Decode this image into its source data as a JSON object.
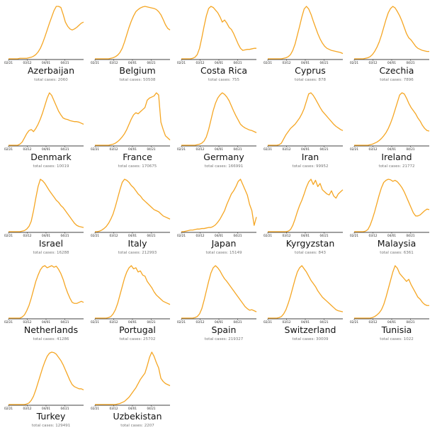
{
  "colors": {
    "line": "#f5a623",
    "axis": "#000000",
    "label": "#111111",
    "subtitle": "#777777"
  },
  "tick_labels": [
    "02/21",
    "03/12",
    "04/01",
    "04/21"
  ],
  "total_prefix": "total cases: ",
  "chart_data": [
    {
      "type": "line",
      "country": "Azerbaijan",
      "total": "2060",
      "y": [
        0,
        0,
        0,
        0,
        0,
        1,
        1,
        1,
        1,
        2,
        3,
        5,
        8,
        13,
        20,
        30,
        42,
        55,
        68,
        80,
        92,
        100,
        100,
        98,
        85,
        70,
        62,
        57,
        55,
        57,
        60,
        64,
        68,
        70
      ]
    },
    {
      "type": "line",
      "country": "Belgium",
      "total": "50508",
      "y": [
        0,
        0,
        0,
        0,
        0,
        0,
        0,
        1,
        2,
        4,
        7,
        12,
        20,
        32,
        46,
        60,
        72,
        82,
        90,
        94,
        97,
        99,
        100,
        99,
        98,
        97,
        96,
        94,
        90,
        84,
        75,
        65,
        58,
        55
      ]
    },
    {
      "type": "line",
      "country": "Costa Rica",
      "total": "755",
      "y": [
        0,
        0,
        0,
        0,
        0,
        1,
        3,
        8,
        20,
        40,
        62,
        82,
        96,
        100,
        98,
        93,
        88,
        80,
        70,
        74,
        68,
        60,
        56,
        48,
        38,
        28,
        20,
        16,
        17,
        18,
        18,
        19,
        20,
        20
      ]
    },
    {
      "type": "line",
      "country": "Cyprus",
      "total": "878",
      "y": [
        0,
        0,
        0,
        0,
        0,
        0,
        0,
        1,
        2,
        4,
        8,
        16,
        28,
        45,
        62,
        80,
        95,
        100,
        95,
        85,
        72,
        60,
        48,
        38,
        30,
        24,
        20,
        18,
        16,
        15,
        14,
        13,
        12,
        10
      ]
    },
    {
      "type": "line",
      "country": "Czechia",
      "total": "7896",
      "y": [
        0,
        0,
        0,
        0,
        0,
        1,
        2,
        4,
        8,
        14,
        22,
        32,
        45,
        60,
        75,
        88,
        96,
        100,
        97,
        90,
        82,
        72,
        60,
        48,
        40,
        36,
        30,
        24,
        20,
        18,
        16,
        15,
        14,
        14
      ]
    },
    {
      "type": "line",
      "country": "Denmark",
      "total": "10019",
      "y": [
        0,
        0,
        0,
        0,
        0,
        2,
        6,
        14,
        22,
        28,
        30,
        26,
        32,
        40,
        50,
        62,
        76,
        90,
        100,
        95,
        85,
        75,
        65,
        58,
        52,
        50,
        49,
        47,
        46,
        45,
        45,
        44,
        42,
        40
      ]
    },
    {
      "type": "line",
      "country": "France",
      "total": "170675",
      "y": [
        0,
        0,
        0,
        0,
        0,
        0,
        0,
        1,
        2,
        4,
        7,
        11,
        16,
        22,
        30,
        40,
        50,
        58,
        62,
        60,
        64,
        68,
        72,
        86,
        90,
        92,
        94,
        100,
        96,
        44,
        30,
        18,
        14,
        10
      ]
    },
    {
      "type": "line",
      "country": "Germany",
      "total": "166991",
      "y": [
        0,
        0,
        0,
        0,
        0,
        0,
        0,
        1,
        2,
        4,
        8,
        16,
        30,
        48,
        66,
        80,
        90,
        96,
        100,
        97,
        92,
        85,
        75,
        65,
        56,
        48,
        40,
        36,
        33,
        31,
        29,
        28,
        26,
        24
      ]
    },
    {
      "type": "line",
      "country": "Iran",
      "total": "99952",
      "y": [
        0,
        0,
        0,
        0,
        0,
        1,
        4,
        12,
        20,
        26,
        32,
        36,
        40,
        46,
        52,
        60,
        70,
        84,
        98,
        100,
        95,
        88,
        80,
        72,
        65,
        60,
        55,
        50,
        45,
        40,
        36,
        33,
        30,
        28
      ]
    },
    {
      "type": "line",
      "country": "Ireland",
      "total": "21772",
      "y": [
        0,
        0,
        0,
        0,
        0,
        0,
        0,
        1,
        2,
        4,
        6,
        9,
        13,
        18,
        24,
        32,
        42,
        54,
        68,
        82,
        96,
        100,
        98,
        90,
        80,
        72,
        66,
        60,
        52,
        46,
        38,
        32,
        28,
        27
      ]
    },
    {
      "type": "line",
      "country": "Israel",
      "total": "16288",
      "y": [
        0,
        0,
        0,
        0,
        0,
        0,
        1,
        2,
        5,
        10,
        20,
        40,
        64,
        86,
        100,
        97,
        92,
        85,
        78,
        72,
        66,
        60,
        56,
        50,
        46,
        40,
        34,
        28,
        22,
        16,
        12,
        10,
        9,
        8
      ]
    },
    {
      "type": "line",
      "country": "Italy",
      "total": "212993",
      "y": [
        0,
        0,
        1,
        3,
        6,
        10,
        16,
        24,
        34,
        48,
        64,
        80,
        94,
        100,
        98,
        94,
        88,
        84,
        78,
        72,
        68,
        62,
        58,
        54,
        50,
        46,
        42,
        40,
        38,
        34,
        30,
        28,
        26,
        24
      ]
    },
    {
      "type": "line",
      "country": "Japan",
      "total": "15149",
      "y": [
        0,
        0,
        1,
        2,
        3,
        3,
        4,
        5,
        5,
        6,
        6,
        7,
        8,
        8,
        10,
        13,
        18,
        24,
        32,
        40,
        52,
        62,
        72,
        78,
        86,
        96,
        100,
        90,
        80,
        70,
        52,
        40,
        12,
        28
      ]
    },
    {
      "type": "line",
      "country": "Kyrgyzstan",
      "total": "843",
      "y": [
        0,
        0,
        0,
        0,
        0,
        0,
        0,
        0,
        0,
        1,
        4,
        12,
        24,
        38,
        50,
        60,
        72,
        85,
        95,
        100,
        90,
        98,
        86,
        92,
        80,
        76,
        72,
        70,
        78,
        68,
        64,
        72,
        76,
        80
      ]
    },
    {
      "type": "line",
      "country": "Malaysia",
      "total": "6361",
      "y": [
        0,
        0,
        0,
        0,
        0,
        1,
        4,
        12,
        24,
        38,
        54,
        70,
        84,
        94,
        98,
        100,
        99,
        96,
        98,
        95,
        90,
        84,
        76,
        66,
        56,
        46,
        36,
        30,
        30,
        32,
        36,
        40,
        43,
        42
      ]
    },
    {
      "type": "line",
      "country": "Netherlands",
      "total": "41286",
      "y": [
        0,
        0,
        0,
        0,
        0,
        0,
        2,
        6,
        14,
        24,
        38,
        54,
        70,
        82,
        92,
        98,
        100,
        96,
        98,
        100,
        97,
        99,
        93,
        85,
        74,
        60,
        48,
        38,
        30,
        28,
        28,
        30,
        32,
        30
      ]
    },
    {
      "type": "line",
      "country": "Portugal",
      "total": "25702",
      "y": [
        0,
        0,
        0,
        0,
        0,
        0,
        1,
        3,
        8,
        16,
        28,
        44,
        60,
        76,
        88,
        96,
        100,
        94,
        96,
        88,
        90,
        82,
        80,
        70,
        64,
        58,
        50,
        44,
        40,
        36,
        32,
        30,
        28,
        26
      ]
    },
    {
      "type": "line",
      "country": "Spain",
      "total": "219327",
      "y": [
        0,
        0,
        0,
        0,
        0,
        0,
        1,
        3,
        8,
        18,
        34,
        52,
        70,
        86,
        96,
        100,
        96,
        90,
        82,
        75,
        70,
        64,
        58,
        52,
        46,
        40,
        34,
        28,
        22,
        18,
        15,
        16,
        14,
        12
      ]
    },
    {
      "type": "line",
      "country": "Switzerland",
      "total": "30009",
      "y": [
        0,
        0,
        0,
        0,
        0,
        1,
        3,
        8,
        16,
        28,
        42,
        58,
        74,
        88,
        96,
        100,
        94,
        88,
        80,
        72,
        66,
        60,
        52,
        46,
        40,
        36,
        32,
        28,
        24,
        20,
        16,
        14,
        13,
        12
      ]
    },
    {
      "type": "line",
      "country": "Tunisia",
      "total": "1022",
      "y": [
        0,
        0,
        0,
        0,
        0,
        0,
        0,
        0,
        1,
        3,
        6,
        10,
        16,
        26,
        40,
        56,
        72,
        88,
        100,
        95,
        85,
        80,
        75,
        70,
        74,
        64,
        56,
        48,
        40,
        36,
        30,
        26,
        24,
        24
      ]
    },
    {
      "type": "line",
      "country": "Turkey",
      "total": "129491",
      "y": [
        0,
        0,
        0,
        0,
        0,
        0,
        0,
        0,
        1,
        3,
        8,
        16,
        28,
        42,
        56,
        70,
        82,
        92,
        98,
        100,
        99,
        96,
        90,
        84,
        76,
        66,
        56,
        46,
        38,
        34,
        32,
        30,
        30,
        28
      ]
    },
    {
      "type": "line",
      "country": "Uzbekistan",
      "total": "2207",
      "y": [
        0,
        0,
        0,
        0,
        0,
        0,
        0,
        0,
        0,
        0,
        1,
        2,
        4,
        6,
        10,
        14,
        20,
        26,
        32,
        40,
        48,
        54,
        60,
        74,
        90,
        100,
        92,
        80,
        70,
        50,
        44,
        40,
        38,
        36
      ]
    }
  ]
}
